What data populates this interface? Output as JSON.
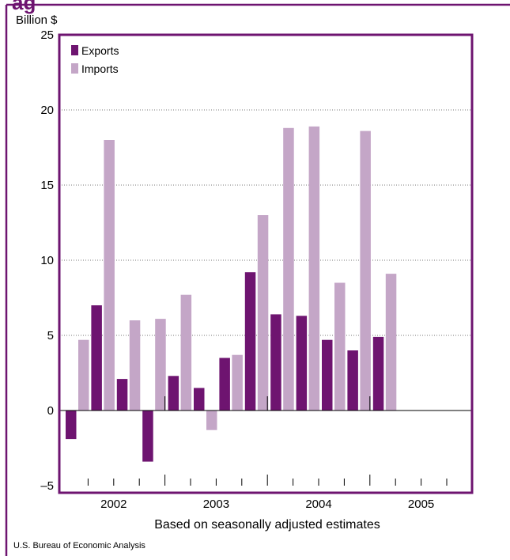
{
  "header_fragment": "ag",
  "chart_data": {
    "type": "bar",
    "ylabel": "Billion $",
    "xlabel": "Based on seasonally adjusted estimates",
    "source": "U.S. Bureau of Economic Analysis",
    "ylim": [
      -5,
      25
    ],
    "yticks": [
      -5,
      0,
      5,
      10,
      15,
      20,
      25
    ],
    "ytick_labels": [
      "–5",
      "0",
      "5",
      "10",
      "15",
      "20",
      "25"
    ],
    "grid": "dotted horizontal",
    "legend_position": "top-left",
    "quarters": [
      "2002 Q1",
      "2002 Q2",
      "2002 Q3",
      "2002 Q4",
      "2003 Q1",
      "2003 Q2",
      "2003 Q3",
      "2003 Q4",
      "2004 Q1",
      "2004 Q2",
      "2004 Q3",
      "2004 Q4",
      "2005 Q1",
      "2005 Q2",
      "2005 Q3",
      "2005 Q4"
    ],
    "year_labels": [
      "2002",
      "2003",
      "2004",
      "2005"
    ],
    "series": [
      {
        "name": "Exports",
        "color": "#6e1470",
        "values": [
          -1.9,
          7.0,
          2.1,
          -3.4,
          2.3,
          1.5,
          3.5,
          9.2,
          6.4,
          6.3,
          4.7,
          4.0,
          4.9,
          null,
          null,
          null
        ]
      },
      {
        "name": "Imports",
        "color": "#c4a6c7",
        "values": [
          4.7,
          18.0,
          6.0,
          6.1,
          7.7,
          -1.3,
          3.7,
          13.0,
          18.8,
          18.9,
          8.5,
          18.6,
          9.1,
          null,
          null,
          null
        ]
      }
    ]
  }
}
